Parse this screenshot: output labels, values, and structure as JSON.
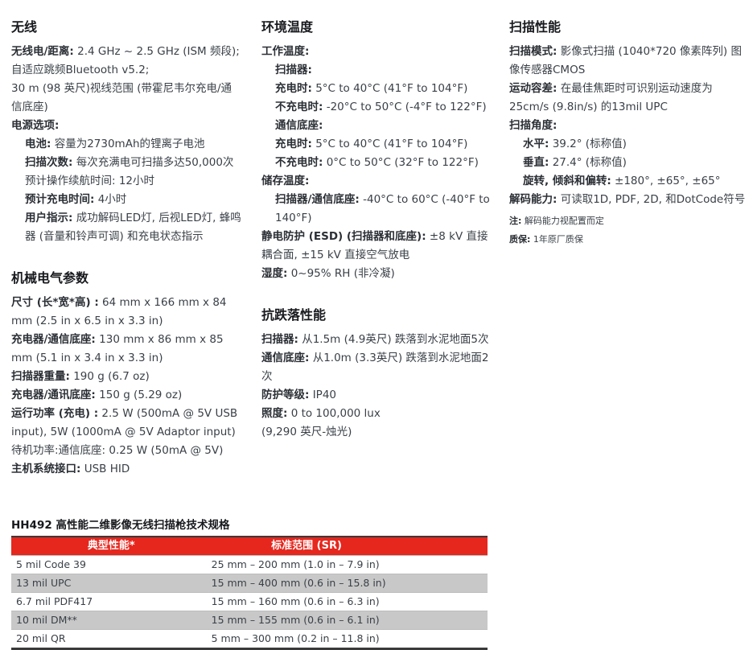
{
  "colors": {
    "accent_red": "#e5271e",
    "row_alt_gray": "#c8c8c8",
    "rule_dark": "#3a3a3a",
    "body_text": "#3a4047",
    "heading_text": "#17191d"
  },
  "columns": [
    {
      "sections": [
        {
          "heading": "无线",
          "items": [
            {
              "label": "无线电/距离:",
              "text": " 2.4 GHz ~ 2.5 GHz (ISM 频段);自适应跳频Bluetooth v5.2;",
              "indent": 0
            },
            {
              "label": "",
              "text": "30 m (98 英尺)视线范围 (带霍尼韦尔充电/通信底座)",
              "indent": 0
            },
            {
              "label": "电源选项:",
              "text": "",
              "indent": 0
            },
            {
              "label": "电池:",
              "text": " 容量为2730mAh的锂离子电池",
              "indent": 1
            },
            {
              "label": "扫描次数:",
              "text": " 每次充满电可扫描多达50,000次",
              "indent": 1
            },
            {
              "label": "",
              "text": "预计操作续航时间: 12小时",
              "indent": 1
            },
            {
              "label": "预计充电时间:",
              "text": " 4小时",
              "indent": 1
            },
            {
              "label": "用户指示:",
              "text": " 成功解码LED灯, 后视LED灯, 蜂鸣器 (音量和铃声可调) 和充电状态指示",
              "indent": 1
            }
          ]
        },
        {
          "heading": "机械电气参数",
          "items": [
            {
              "label": "尺寸 (长*宽*高) :",
              "text": " 64 mm x 166 mm x 84 mm (2.5 in x 6.5 in x 3.3 in)",
              "indent": 0
            },
            {
              "label": "充电器/通信底座:",
              "text": " 130 mm x 86 mm x 85 mm (5.1 in x 3.4 in x 3.3 in)",
              "indent": 0
            },
            {
              "label": "扫描器重量:",
              "text": " 190 g (6.7 oz)",
              "indent": 0
            },
            {
              "label": "充电器/通讯底座:",
              "text": " 150 g (5.29 oz)",
              "indent": 0
            },
            {
              "label": "运行功率 (充电) :",
              "text": "  2.5 W (500mA @ 5V USB input), 5W (1000mA @ 5V Adaptor input)",
              "indent": 0
            },
            {
              "label": "",
              "text": "待机功率:通信底座: 0.25 W (50mA @ 5V)",
              "indent": 0
            },
            {
              "label": "主机系统接口:",
              "text": " USB HID",
              "indent": 0
            }
          ]
        }
      ]
    },
    {
      "sections": [
        {
          "heading": "环境温度",
          "items": [
            {
              "label": "工作温度:",
              "text": "",
              "indent": 0
            },
            {
              "label": "扫描器:",
              "text": "",
              "indent": 1
            },
            {
              "label": "充电时:",
              "text": " 5°C to 40°C (41°F to 104°F)",
              "indent": 1
            },
            {
              "label": "不充电时:",
              "text": " -20°C to 50°C (-4°F to 122°F)",
              "indent": 1
            },
            {
              "label": "通信底座:",
              "text": "",
              "indent": 1
            },
            {
              "label": "充电时:",
              "text": " 5°C to 40°C (41°F to 104°F)",
              "indent": 1
            },
            {
              "label": "不充电时:",
              "text": " 0°C to 50°C (32°F to 122°F)",
              "indent": 1
            },
            {
              "label": "储存温度:",
              "text": "",
              "indent": 0
            },
            {
              "label": "扫描器/通信底座:",
              "text": " -40°C to 60°C (-40°F to 140°F)",
              "indent": 1
            },
            {
              "label": "静电防护 (ESD) (扫描器和底座):",
              "text": " ±8 kV 直接耦合面, ±15 kV 直接空气放电",
              "indent": 0
            },
            {
              "label": "湿度:",
              "text": " 0~95% RH (非冷凝)",
              "indent": 0
            }
          ]
        },
        {
          "heading": "抗跌落性能",
          "items": [
            {
              "label": "扫描器:",
              "text": " 从1.5m (4.9英尺) 跌落到水泥地面5次",
              "indent": 0
            },
            {
              "label": "通信底座:",
              "text": " 从1.0m (3.3英尺) 跌落到水泥地面2次",
              "indent": 0
            },
            {
              "label": "防护等级:",
              "text": " IP40",
              "indent": 0
            },
            {
              "label": "照度:",
              "text": " 0 to 100,000 lux",
              "indent": 0
            },
            {
              "label": "",
              "text": "(9,290 英尺-烛光)",
              "indent": 0
            }
          ]
        }
      ]
    },
    {
      "sections": [
        {
          "heading": "扫描性能",
          "items": [
            {
              "label": "扫描模式:",
              "text": " 影像式扫描 (1040*720 像素阵列)  图像传感器CMOS",
              "indent": 0
            },
            {
              "label": "运动容差:",
              "text": " 在最佳焦距时可识别运动速度为25cm/s (9.8in/s) 的13mil UPC",
              "indent": 0
            },
            {
              "label": "扫描角度:",
              "text": "",
              "indent": 0
            },
            {
              "label": "水平:",
              "text": " 39.2° (标称值)",
              "indent": 1
            },
            {
              "label": "垂直:",
              "text": " 27.4° (标称值)",
              "indent": 1
            },
            {
              "label": "旋转, 倾斜和偏转:",
              "text": " ±180°, ±65°, ±65°",
              "indent": 1
            },
            {
              "label": "解码能力:",
              "text": " 可读取1D, PDF, 2D, 和DotCode符号",
              "indent": 0
            },
            {
              "label": "注:",
              "text": " 解码能力视配置而定",
              "indent": 0,
              "small": true
            },
            {
              "label": "质保:",
              "text": " 1年原厂质保",
              "indent": 0,
              "small": true
            }
          ]
        }
      ]
    }
  ],
  "table": {
    "title": "HH492 高性能二维影像无线扫描枪技术规格",
    "headers": [
      "典型性能*",
      "标准范围 (SR)"
    ],
    "rows": [
      {
        "cells": [
          "5 mil Code 39",
          "25 mm – 200 mm (1.0 in – 7.9 in)"
        ],
        "shaded": false
      },
      {
        "cells": [
          "13 mil UPC",
          "15 mm – 400 mm (0.6 in – 15.8 in)"
        ],
        "shaded": true
      },
      {
        "cells": [
          "6.7 mil PDF417",
          "15 mm – 160 mm (0.6 in – 6.3 in)"
        ],
        "shaded": false
      },
      {
        "cells": [
          "10 mil DM**",
          "15 mm – 155 mm (0.6 in – 6.1 in)"
        ],
        "shaded": true
      },
      {
        "cells": [
          "20 mil QR",
          "5 mm – 300 mm (0.2 in – 11.8 in)"
        ],
        "shaded": false
      }
    ]
  }
}
